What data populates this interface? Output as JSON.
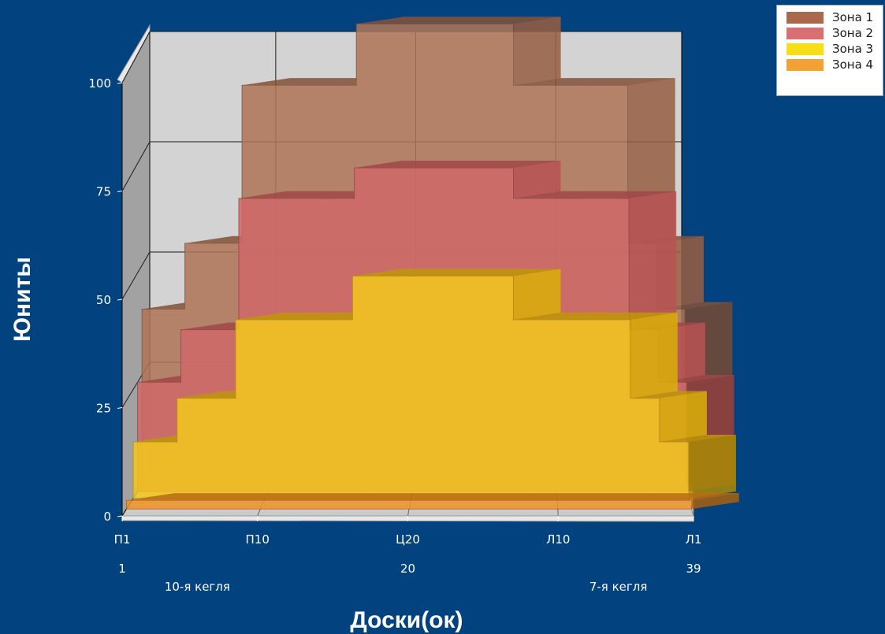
{
  "chart_data": {
    "type": "area",
    "view": "3d",
    "ylabel": "Юниты",
    "xlabel": "Доски(ок)",
    "ylim": [
      0,
      100
    ],
    "yticks": [
      0,
      25,
      50,
      75,
      100
    ],
    "grid": true,
    "legend_position": "top-right",
    "x_count": 39,
    "category_labels": [
      {
        "x": 1,
        "label": "П1"
      },
      {
        "x": 10,
        "label": "П10"
      },
      {
        "x": 20,
        "label": "Ц20"
      },
      {
        "x": 30,
        "label": "Л10"
      },
      {
        "x": 39,
        "label": "Л1"
      }
    ],
    "index_labels": [
      {
        "x": 1,
        "label": "1"
      },
      {
        "x": 20,
        "label": "20"
      },
      {
        "x": 39,
        "label": "39"
      }
    ],
    "annotations": [
      {
        "x": 6,
        "label": "10-я кегля"
      },
      {
        "x": 34,
        "label": "7-я кегля"
      }
    ],
    "segments": [
      [
        1,
        4
      ],
      [
        4,
        8
      ],
      [
        8,
        13
      ],
      [
        13,
        16
      ],
      [
        16,
        27
      ],
      [
        27,
        30
      ],
      [
        30,
        35
      ],
      [
        35,
        37
      ],
      [
        37,
        39
      ]
    ],
    "series": [
      {
        "name": "Зона 1",
        "color": "#a9694a",
        "values": [
          40,
          55,
          91,
          91,
          105,
          91,
          91,
          55,
          40
        ]
      },
      {
        "name": "Зона 2",
        "color": "#cc5c5c",
        "values": [
          25,
          37,
          67,
          67,
          74,
          67,
          67,
          37,
          25
        ]
      },
      {
        "name": "Зона 3",
        "color": "#f2c20a",
        "values": [
          13,
          23,
          41,
          41,
          51,
          41,
          41,
          23,
          13
        ]
      },
      {
        "name": "Зона 4",
        "color": "#f08a14",
        "values": [
          2,
          2,
          2,
          2,
          2,
          2,
          2,
          2,
          2
        ]
      }
    ]
  }
}
